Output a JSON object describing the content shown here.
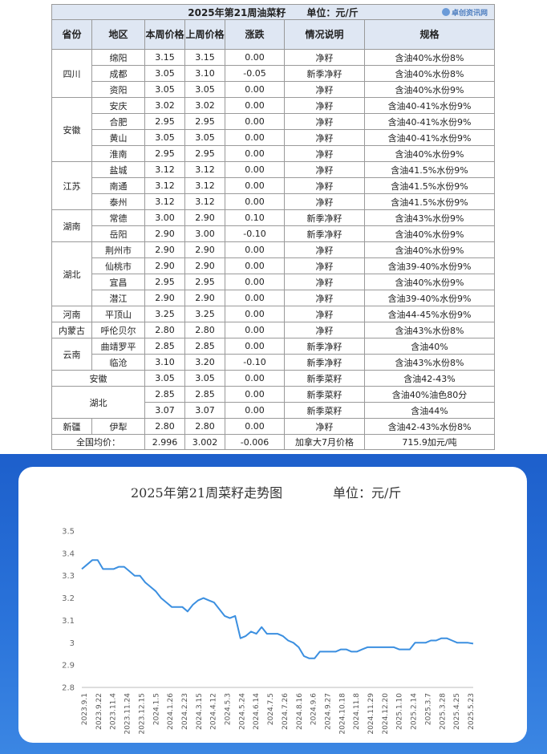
{
  "table": {
    "title": "2025年第21周油菜籽",
    "unit": "单位：元/斤",
    "logo": "卓创资讯网",
    "headers": [
      "省份",
      "地区",
      "本周价格",
      "上周价格",
      "涨跌",
      "情况说明",
      "规格"
    ],
    "rows": [
      {
        "province": "四川",
        "region": "绵阳",
        "this_week": "3.15",
        "last_week": "3.15",
        "change": "0.00",
        "note": "净籽",
        "spec": "含油40%水份8%"
      },
      {
        "province": "",
        "region": "成都",
        "this_week": "3.05",
        "last_week": "3.10",
        "change": "-0.05",
        "note": "新季净籽",
        "spec": "含油40%水份8%"
      },
      {
        "province": "",
        "region": "资阳",
        "this_week": "3.05",
        "last_week": "3.05",
        "change": "0.00",
        "note": "净籽",
        "spec": "含油40%水份9%"
      },
      {
        "province": "安徽",
        "region": "安庆",
        "this_week": "3.02",
        "last_week": "3.02",
        "change": "0.00",
        "note": "净籽",
        "spec": "含油40-41%水份9%"
      },
      {
        "province": "",
        "region": "合肥",
        "this_week": "2.95",
        "last_week": "2.95",
        "change": "0.00",
        "note": "净籽",
        "spec": "含油40-41%水份9%"
      },
      {
        "province": "",
        "region": "黄山",
        "this_week": "3.05",
        "last_week": "3.05",
        "change": "0.00",
        "note": "净籽",
        "spec": "含油40-41%水份9%"
      },
      {
        "province": "",
        "region": "淮南",
        "this_week": "2.95",
        "last_week": "2.95",
        "change": "0.00",
        "note": "净籽",
        "spec": "含油40%水份9%"
      },
      {
        "province": "江苏",
        "region": "盐城",
        "this_week": "3.12",
        "last_week": "3.12",
        "change": "0.00",
        "note": "净籽",
        "spec": "含油41.5%水份9%"
      },
      {
        "province": "",
        "region": "南通",
        "this_week": "3.12",
        "last_week": "3.12",
        "change": "0.00",
        "note": "净籽",
        "spec": "含油41.5%水份9%"
      },
      {
        "province": "",
        "region": "泰州",
        "this_week": "3.12",
        "last_week": "3.12",
        "change": "0.00",
        "note": "净籽",
        "spec": "含油41.5%水份9%"
      },
      {
        "province": "湖南",
        "region": "常德",
        "this_week": "3.00",
        "last_week": "2.90",
        "change": "0.10",
        "note": "新季净籽",
        "spec": "含油43%水份9%"
      },
      {
        "province": "",
        "region": "岳阳",
        "this_week": "2.90",
        "last_week": "3.00",
        "change": "-0.10",
        "note": "新季净籽",
        "spec": "含油40%水份9%"
      },
      {
        "province": "湖北",
        "region": "荆州市",
        "this_week": "2.90",
        "last_week": "2.90",
        "change": "0.00",
        "note": "净籽",
        "spec": "含油40%水份9%"
      },
      {
        "province": "",
        "region": "仙桃市",
        "this_week": "2.90",
        "last_week": "2.90",
        "change": "0.00",
        "note": "净籽",
        "spec": "含油39-40%水份9%"
      },
      {
        "province": "",
        "region": "宜昌",
        "this_week": "2.95",
        "last_week": "2.95",
        "change": "0.00",
        "note": "净籽",
        "spec": "含油40%水份9%"
      },
      {
        "province": "",
        "region": "潜江",
        "this_week": "2.90",
        "last_week": "2.90",
        "change": "0.00",
        "note": "净籽",
        "spec": "含油39-40%水份9%"
      },
      {
        "province": "河南",
        "region": "平顶山",
        "this_week": "3.25",
        "last_week": "3.25",
        "change": "0.00",
        "note": "净籽",
        "spec": "含油44-45%水份9%"
      },
      {
        "province": "内蒙古",
        "region": "呼伦贝尔",
        "this_week": "2.80",
        "last_week": "2.80",
        "change": "0.00",
        "note": "净籽",
        "spec": "含油43%水份8%"
      },
      {
        "province": "云南",
        "region": "曲靖罗平",
        "this_week": "2.85",
        "last_week": "2.85",
        "change": "0.00",
        "note": "新季净籽",
        "spec": "含油40%"
      },
      {
        "province": "",
        "region": "临沧",
        "this_week": "3.10",
        "last_week": "3.20",
        "change": "-0.10",
        "note": "新季净籽",
        "spec": "含油43%水份8%"
      },
      {
        "province": "安徽",
        "region": "",
        "this_week": "3.05",
        "last_week": "3.05",
        "change": "0.00",
        "note": "新季菜籽",
        "spec": "含油42-43%"
      },
      {
        "province": "湖北",
        "region": "",
        "this_week": "2.85",
        "last_week": "2.85",
        "change": "0.00",
        "note": "新季菜籽",
        "spec": "含油40%油色80分"
      },
      {
        "province": "",
        "region": "",
        "this_week": "3.07",
        "last_week": "3.07",
        "change": "0.00",
        "note": "新季菜籽",
        "spec": "含油44%"
      },
      {
        "province": "新疆",
        "region": "伊犁",
        "this_week": "2.80",
        "last_week": "2.80",
        "change": "0.00",
        "note": "净籽",
        "spec": "含油42-43%水份8%"
      }
    ],
    "average": {
      "label": "全国均价：",
      "this_week": "2.996",
      "last_week": "3.002",
      "change": "-0.006",
      "note": "加拿大7月价格",
      "spec": "715.9加元/吨"
    }
  },
  "colors": {
    "header_bg": "#dfe7f3",
    "chart_bg": "#2a73da",
    "line": "#3b8fe0"
  },
  "chart_data": {
    "type": "line",
    "title": "2025年第21周菜籽走势图",
    "unit": "单位：元/斤",
    "ylim": [
      2.8,
      3.5
    ],
    "yticks": [
      2.8,
      2.9,
      3,
      3.1,
      3.2,
      3.3,
      3.4,
      3.5
    ],
    "ytick_labels": [
      "2.8",
      "2.9",
      "3",
      "3.1",
      "3.2",
      "3.3",
      "3.4",
      "3.5"
    ],
    "grid": false,
    "x_tick_labels": [
      "2023.9.1",
      "2023.9.22",
      "2023.11.4",
      "2023.11.24",
      "2023.12.15",
      "2024.1.5",
      "2024.1.26",
      "2024.2.23",
      "2024.3.15",
      "2024.4.12",
      "2024.5.3",
      "2024.5.24",
      "2024.6.14",
      "2024.7.5",
      "2024.7.26",
      "2024.8.16",
      "2024.9.6",
      "2024.9.27",
      "2024.10.18",
      "2024.11.8",
      "2024.11.29",
      "2024.12.20",
      "2025.1.10",
      "2025.2.14",
      "2025.3.7",
      "2025.3.28",
      "2025.4.25",
      "2025.5.23"
    ],
    "series": [
      {
        "values": [
          3.33,
          3.35,
          3.37,
          3.37,
          3.33,
          3.33,
          3.33,
          3.34,
          3.34,
          3.32,
          3.3,
          3.3,
          3.27,
          3.25,
          3.23,
          3.2,
          3.18,
          3.16,
          3.16,
          3.16,
          3.14,
          3.17,
          3.19,
          3.2,
          3.19,
          3.18,
          3.15,
          3.12,
          3.11,
          3.12,
          3.02,
          3.03,
          3.05,
          3.04,
          3.07,
          3.04,
          3.04,
          3.04,
          3.03,
          3.01,
          3.0,
          2.98,
          2.94,
          2.93,
          2.93,
          2.96,
          2.96,
          2.96,
          2.96,
          2.97,
          2.97,
          2.96,
          2.96,
          2.97,
          2.98,
          2.98,
          2.98,
          2.98,
          2.98,
          2.98,
          2.97,
          2.97,
          2.97,
          3.0,
          3.0,
          3.0,
          3.01,
          3.01,
          3.02,
          3.02,
          3.01,
          3.0,
          3.0,
          3.0,
          2.996
        ]
      }
    ]
  }
}
